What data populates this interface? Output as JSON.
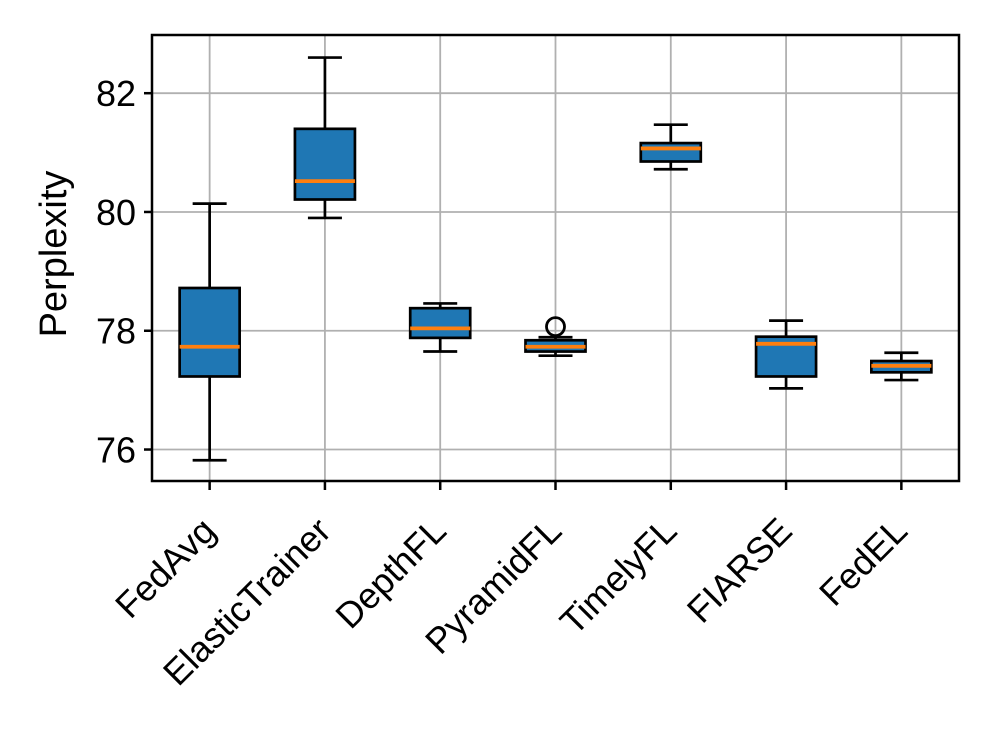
{
  "figure": {
    "background": "#ffffff"
  },
  "chart_data": {
    "type": "boxplot",
    "title": "",
    "xlabel": "",
    "ylabel": "Perplexity",
    "categories": [
      "FedAvg",
      "ElasticTrainer",
      "DepthFL",
      "PyramidFL",
      "TimelyFL",
      "FIARSE",
      "FedEL"
    ],
    "series": [
      {
        "label": "FedAvg",
        "whislo": 75.82,
        "q1": 77.23,
        "med": 77.73,
        "q3": 78.72,
        "whishi": 80.14,
        "fliers": []
      },
      {
        "label": "ElasticTrainer",
        "whislo": 79.9,
        "q1": 80.21,
        "med": 80.52,
        "q3": 81.4,
        "whishi": 82.6,
        "fliers": []
      },
      {
        "label": "DepthFL",
        "whislo": 77.65,
        "q1": 77.88,
        "med": 78.04,
        "q3": 78.38,
        "whishi": 78.46,
        "fliers": []
      },
      {
        "label": "PyramidFL",
        "whislo": 77.58,
        "q1": 77.65,
        "med": 77.73,
        "q3": 77.84,
        "whishi": 77.89,
        "fliers": [
          78.07
        ]
      },
      {
        "label": "TimelyFL",
        "whislo": 80.72,
        "q1": 80.85,
        "med": 81.07,
        "q3": 81.16,
        "whishi": 81.47,
        "fliers": []
      },
      {
        "label": "FIARSE",
        "whislo": 77.03,
        "q1": 77.23,
        "med": 77.78,
        "q3": 77.9,
        "whishi": 78.17,
        "fliers": []
      },
      {
        "label": "FedEL",
        "whislo": 77.17,
        "q1": 77.3,
        "med": 77.41,
        "q3": 77.49,
        "whishi": 77.63,
        "fliers": []
      }
    ],
    "yticks": [
      76,
      78,
      80,
      82
    ],
    "ytick_labels": [
      "76",
      "78",
      "80",
      "82"
    ],
    "ylim": [
      75.47,
      82.98
    ],
    "grid": true,
    "legend": "none",
    "xtick_rotation_deg": 45,
    "colors": {
      "box_fill": "#1f77b4",
      "median": "#ff7f0e",
      "line": "#000000",
      "grid": "#b0b0b0",
      "background": "#ffffff"
    }
  }
}
